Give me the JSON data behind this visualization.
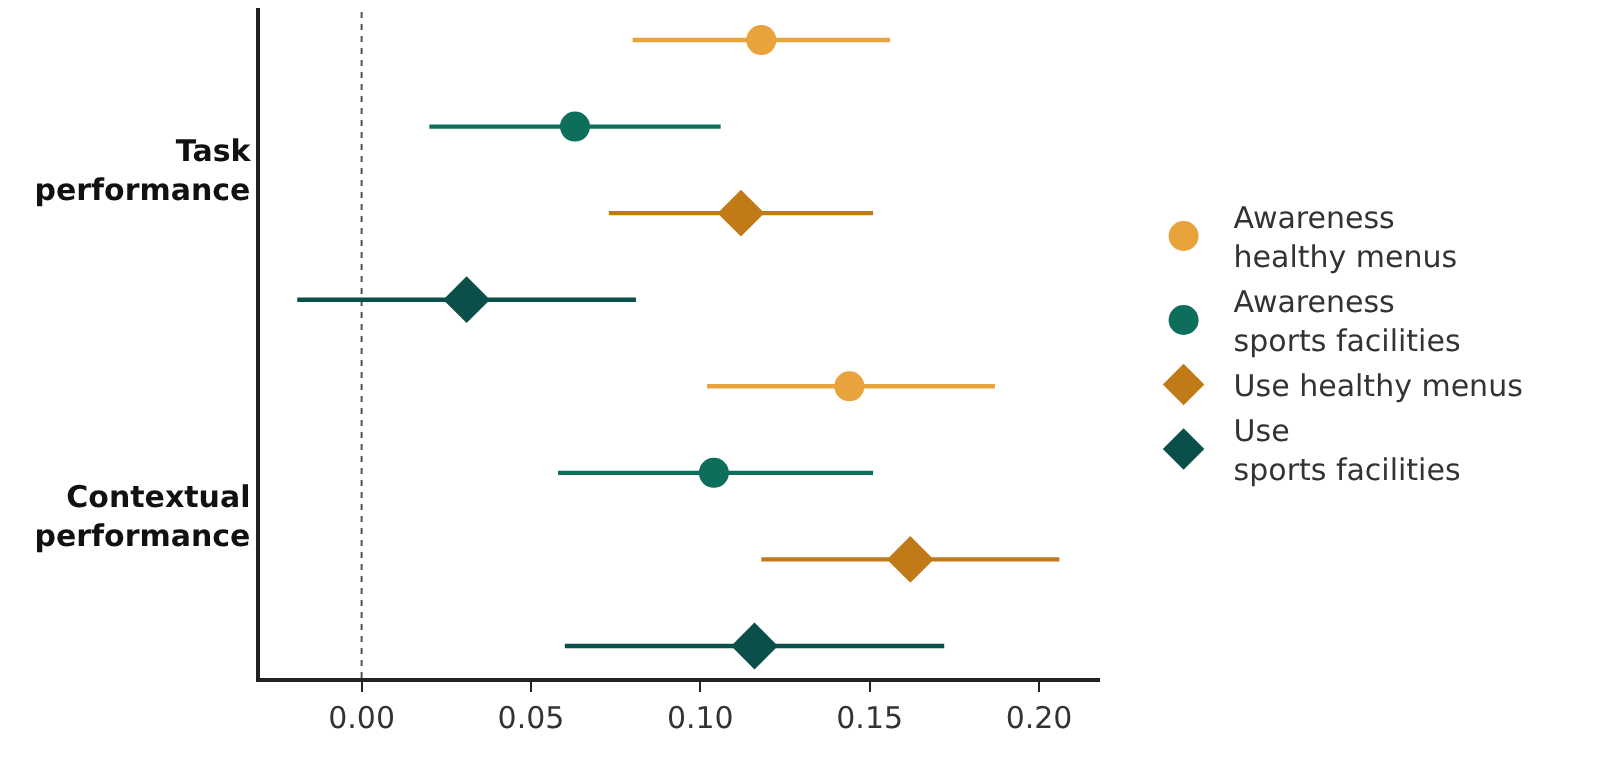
{
  "chart_data": {
    "type": "scatter",
    "orientation": "horizontal",
    "categories": [
      "Task performance",
      "Contextual performance"
    ],
    "series": [
      {
        "name": "Awareness healthy menus",
        "color": "#e8a33d",
        "marker": "circle",
        "values": [
          0.118,
          0.144
        ],
        "errors": [
          [
            0.08,
            0.156
          ],
          [
            0.102,
            0.187
          ]
        ]
      },
      {
        "name": "Awareness sports facilities",
        "color": "#0e6e5c",
        "marker": "circle",
        "values": [
          0.063,
          0.104
        ],
        "errors": [
          [
            0.02,
            0.106
          ],
          [
            0.058,
            0.151
          ]
        ]
      },
      {
        "name": "Use healthy menus",
        "color": "#c07a17",
        "marker": "diamond",
        "values": [
          0.112,
          0.162
        ],
        "errors": [
          [
            0.073,
            0.151
          ],
          [
            0.118,
            0.206
          ]
        ]
      },
      {
        "name": "Use sports facilities",
        "color": "#0b4f4a",
        "marker": "diamond",
        "values": [
          0.031,
          0.116
        ],
        "errors": [
          [
            -0.019,
            0.081
          ],
          [
            0.06,
            0.172
          ]
        ]
      }
    ],
    "xlim": [
      -0.03,
      0.218
    ],
    "xticks": [
      {
        "value": 0,
        "label": "0.00"
      },
      0.05,
      {
        "value": 0.1,
        "label": "0.10"
      },
      0.15,
      {
        "value": 0.2,
        "label": "0.20"
      }
    ],
    "ref_lines": [
      {
        "axis": "x",
        "value": 0,
        "color": "#555555",
        "line_style": "dotted"
      }
    ],
    "grid": false,
    "legend": "right"
  }
}
